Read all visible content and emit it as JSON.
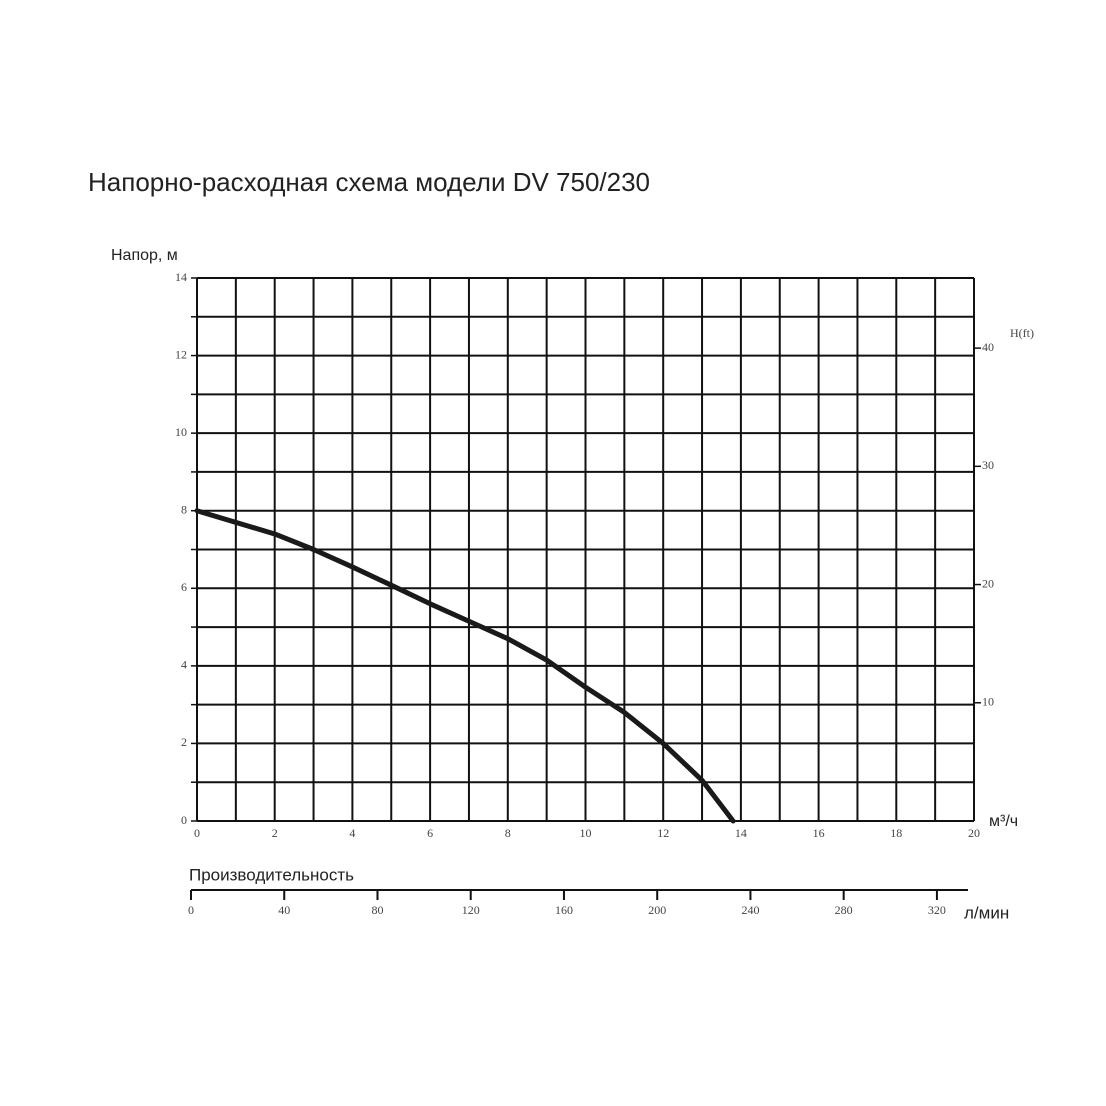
{
  "chart_data": {
    "type": "line",
    "title": "Напорно-расходная схема модели DV 750/230",
    "ylabel": "Напор, м",
    "xlabel": "м³/ч",
    "y2label": "H(ft)",
    "x2_title": "Производительность",
    "x2_unit": "л/мин",
    "x": [
      0,
      2,
      3,
      4,
      5,
      6,
      7,
      8,
      9,
      10,
      11,
      12,
      13,
      13.8
    ],
    "values": [
      8,
      7.4,
      7.0,
      6.55,
      6.08,
      5.6,
      5.15,
      4.7,
      4.15,
      3.45,
      2.8,
      2.0,
      1.05,
      0
    ],
    "color": "#1a1a1a",
    "xlim": [
      0,
      20
    ],
    "xticks": [
      0,
      2,
      4,
      6,
      8,
      10,
      12,
      14,
      16,
      18,
      20
    ],
    "xminor": [
      1,
      3,
      5,
      7,
      9,
      11,
      13,
      15,
      17,
      19
    ],
    "ylim": [
      0,
      14
    ],
    "yticks": [
      0,
      2,
      4,
      6,
      8,
      10,
      12,
      14
    ],
    "yminor": [
      1,
      3,
      5,
      7,
      9,
      11,
      13
    ],
    "y2lim": [
      0,
      45.93
    ],
    "y2ticks": [
      10,
      20,
      30,
      40
    ],
    "x2lim": [
      0,
      333.33
    ],
    "x2ticks": [
      0,
      40,
      80,
      120,
      160,
      200,
      240,
      280,
      320
    ],
    "grid": true
  }
}
